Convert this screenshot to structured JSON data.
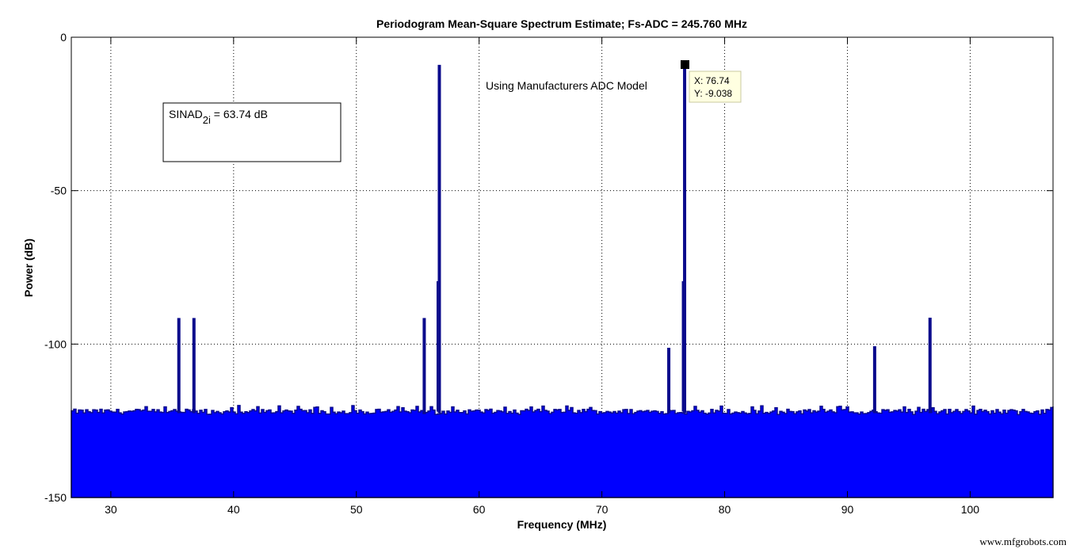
{
  "chart_data": {
    "type": "bar",
    "title": "Periodogram Mean-Square Spectrum Estimate; Fs-ADC = 245.760 MHz",
    "xlabel": "Frequency (MHz)",
    "ylabel": "Power (dB)",
    "xlim": [
      26.78,
      106.75
    ],
    "ylim": [
      -150,
      0
    ],
    "xticks": [
      30,
      40,
      50,
      60,
      70,
      80,
      90,
      100
    ],
    "yticks": [
      0,
      -50,
      -100,
      -150
    ],
    "grid": true,
    "legend": null,
    "fill_color": "#0000ff",
    "edge_color": "#0a0a8c",
    "noise_floor": {
      "min_db": -123,
      "max_db": -120,
      "typical_db": -122
    },
    "spurs": [
      {
        "x": 35.54,
        "y": -91.5
      },
      {
        "x": 36.77,
        "y": -91.5
      },
      {
        "x": 55.53,
        "y": -91.5
      },
      {
        "x": 56.76,
        "y": -9.0,
        "shoulder_db": -79.5
      },
      {
        "x": 75.45,
        "y": -101.2
      },
      {
        "x": 76.74,
        "y": -9.038,
        "shoulder_db": -79.5
      },
      {
        "x": 92.22,
        "y": -100.7
      },
      {
        "x": 96.73,
        "y": -91.4
      }
    ],
    "annotations": [
      {
        "text": "Using Manufacturers ADC Model",
        "x": 61.0,
        "y": -16
      },
      {
        "text_main": "SINAD",
        "text_sub": "2i",
        "text_rest": " = 63.74 dB",
        "box": true
      }
    ],
    "datatip": {
      "x_label": "X: 76.74",
      "y_label": "Y: -9.038",
      "x": 76.74,
      "y": -9.038
    }
  },
  "watermark": "www.mfgrobots.com"
}
